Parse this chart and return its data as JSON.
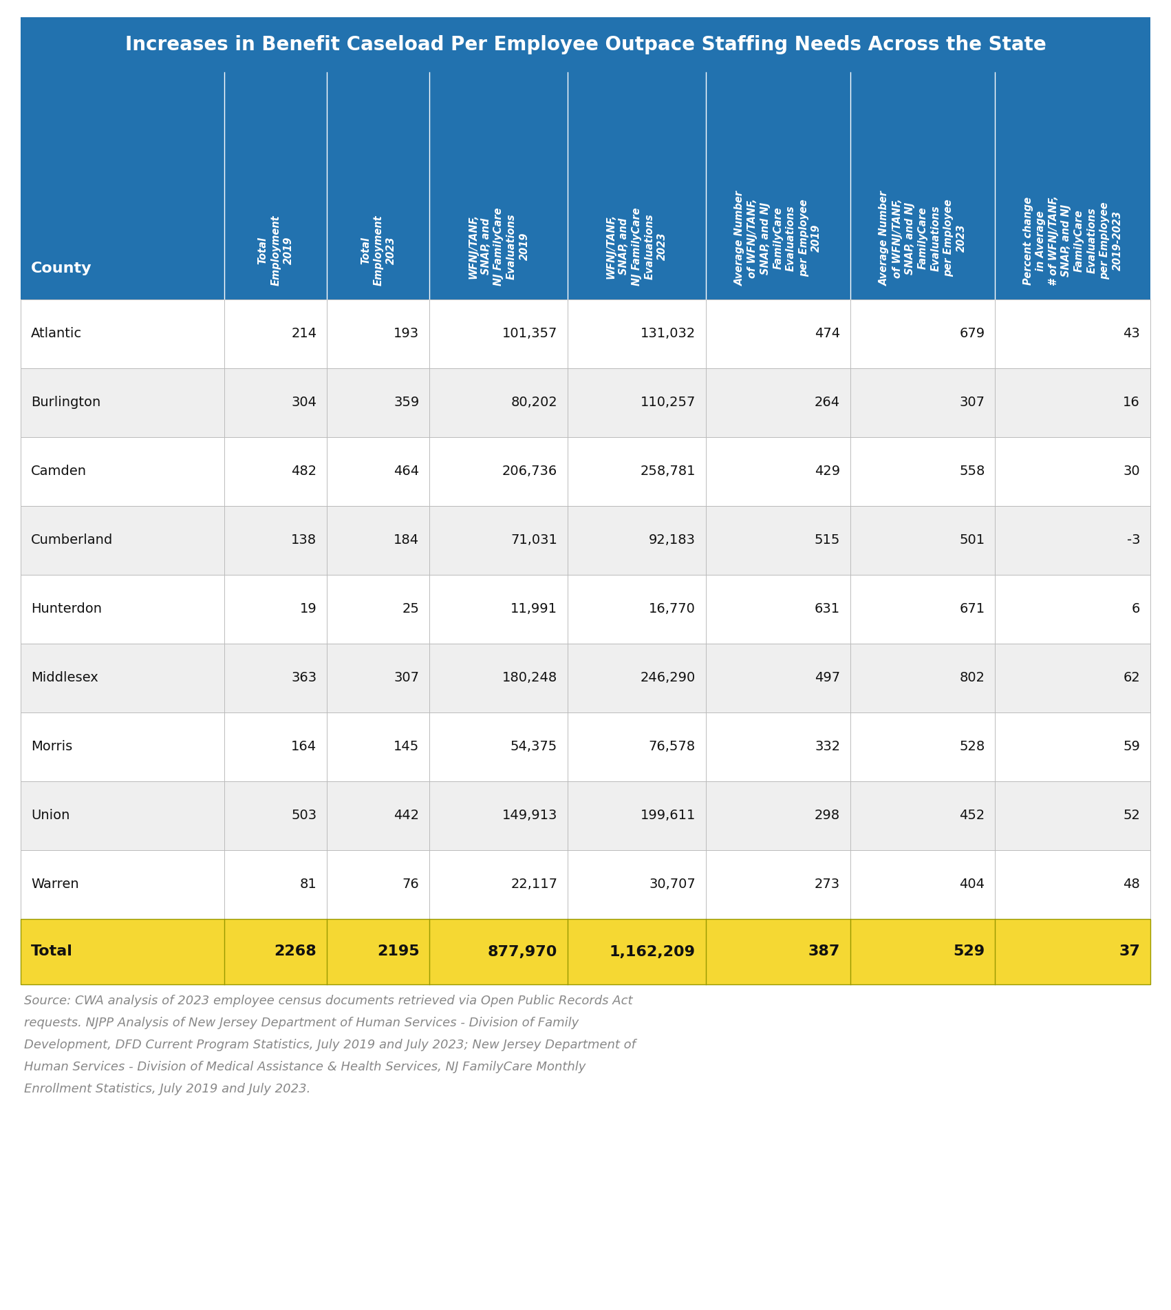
{
  "title": "Increases in Benefit Caseload Per Employee Outpace Staffing Needs Across the State",
  "title_bg_color": "#2272AF",
  "title_text_color": "#FFFFFF",
  "header_bg_color": "#2272AF",
  "header_text_color": "#FFFFFF",
  "row_bg_colors": [
    "#FFFFFF",
    "#EFEFEF"
  ],
  "total_row_bg_color": "#F5D833",
  "total_row_text_color": "#000000",
  "border_color": "#AAAAAA",
  "source_text_color": "#888888",
  "columns": [
    "County",
    "Total\nEmployment\n2019",
    "Total\nEmployment\n2023",
    "WFNJ/TANF,\nSNAP, and\nNJ FamilyCare\nEvaluations\n2019",
    "WFNJ/TANF,\nSNAP, and\nNJ FamilyCare\nEvaluations\n2023",
    "Average Number\nof WFNJ/TANF,\nSNAP, and NJ\nFamilyCare\nEvaluations\nper Employee\n2019",
    "Average Number\nof WFNJ/TANF,\nSNAP, and NJ\nFamilyCare\nEvaluations\nper Employee\n2023",
    "Percent change\nin Average\n# of WFNJ/TANF,\nSNAP, and NJ\nFamilyCare\nEvaluations\nper Employee\n2019-2023"
  ],
  "rows": [
    [
      "Atlantic",
      "214",
      "193",
      "101,357",
      "131,032",
      "474",
      "679",
      "43"
    ],
    [
      "Burlington",
      "304",
      "359",
      "80,202",
      "110,257",
      "264",
      "307",
      "16"
    ],
    [
      "Camden",
      "482",
      "464",
      "206,736",
      "258,781",
      "429",
      "558",
      "30"
    ],
    [
      "Cumberland",
      "138",
      "184",
      "71,031",
      "92,183",
      "515",
      "501",
      "-3"
    ],
    [
      "Hunterdon",
      "19",
      "25",
      "11,991",
      "16,770",
      "631",
      "671",
      "6"
    ],
    [
      "Middlesex",
      "363",
      "307",
      "180,248",
      "246,290",
      "497",
      "802",
      "62"
    ],
    [
      "Morris",
      "164",
      "145",
      "54,375",
      "76,578",
      "332",
      "528",
      "59"
    ],
    [
      "Union",
      "503",
      "442",
      "149,913",
      "199,611",
      "298",
      "452",
      "52"
    ],
    [
      "Warren",
      "81",
      "76",
      "22,117",
      "30,707",
      "273",
      "404",
      "48"
    ]
  ],
  "total_row": [
    "Total",
    "2268",
    "2195",
    "877,970",
    "1,162,209",
    "387",
    "529",
    "37"
  ],
  "source_text": "Source: CWA analysis of 2023 employee census documents retrieved via Open Public Records Act\nrequests. NJPP Analysis of New Jersey Department of Human Services - Division of Family\nDevelopment, DFD Current Program Statistics, July 2019 and July 2023; New Jersey Department of\nHuman Services - Division of Medical Assistance & Health Services, NJ FamilyCare Monthly\nEnrollment Statistics, July 2019 and July 2023."
}
